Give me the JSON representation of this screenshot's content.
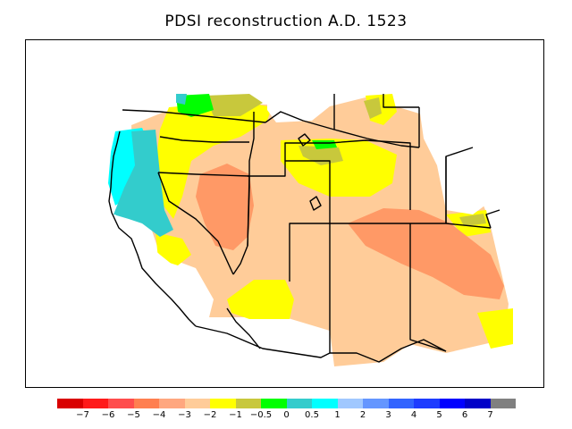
{
  "title": "PDSI reconstruction A.D. 1523",
  "legend": {
    "colors": [
      "#d90000",
      "#ff1a1a",
      "#ff4d4d",
      "#ff7f50",
      "#ffa77f",
      "#ffcc99",
      "#ffff00",
      "#c8c83c",
      "#00ff00",
      "#33cccc",
      "#00ffff",
      "#a0c8ff",
      "#6496ff",
      "#3264ff",
      "#1e3cff",
      "#0000ff",
      "#0000c8",
      "#808080"
    ],
    "labels": [
      "−7",
      "−6",
      "−5",
      "−4",
      "−3",
      "−2",
      "−1",
      "−0.5",
      "0",
      "0.5",
      "1",
      "2",
      "3",
      "4",
      "5",
      "6",
      "7"
    ]
  },
  "map": {
    "region": "Western United States",
    "palette": {
      "dry_moderate": "#ffcc99",
      "dry_severe": "#ff9966",
      "near_normal_dry": "#ffff00",
      "near_normal": "#c8c83c",
      "normal": "#00ff00",
      "wet_slight": "#33cccc",
      "wet": "#00ffff"
    }
  }
}
